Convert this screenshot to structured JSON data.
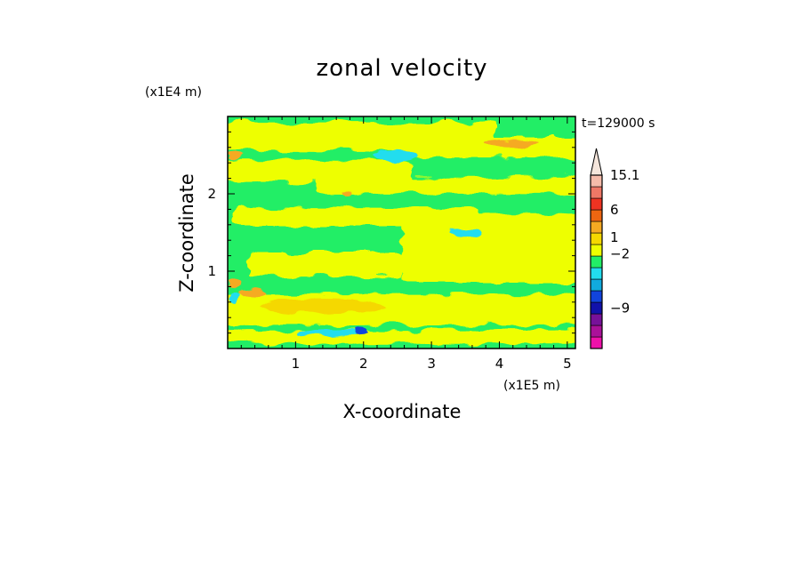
{
  "chart_data": {
    "type": "heatmap",
    "title": "zonal velocity",
    "xlabel": "X-coordinate",
    "ylabel": "Z-coordinate",
    "x_scale_label": "(x1E5 m)",
    "y_scale_label": "(x1E4 m)",
    "time_label": "t=129000 s",
    "xlim": [
      0,
      5.12
    ],
    "ylim": [
      0,
      3.0
    ],
    "x_ticks": [
      1,
      2,
      3,
      4,
      5
    ],
    "y_ticks": [
      1,
      2
    ],
    "colorbar": {
      "levels_bottom_to_top": [
        {
          "color": "#ee11aa"
        },
        {
          "color": "#aa1199"
        },
        {
          "color": "#771199"
        },
        {
          "color": "#1111aa"
        },
        {
          "color": "#1144dd"
        },
        {
          "color": "#11aadd"
        },
        {
          "color": "#22ddee"
        },
        {
          "color": "#22ee66"
        },
        {
          "color": "#eeff00"
        },
        {
          "color": "#f5d800"
        },
        {
          "color": "#f5aa22"
        },
        {
          "color": "#ee6611"
        },
        {
          "color": "#ee3322"
        },
        {
          "color": "#ee7766"
        },
        {
          "color": "#f5bbaa"
        }
      ],
      "extend_top_color": "#f5e6dc",
      "labels": [
        {
          "text": "15.1",
          "level": 15
        },
        {
          "text": "6",
          "level": 12
        },
        {
          "text": "1",
          "level": 9.6
        },
        {
          "text": "−2",
          "level": 8.2
        },
        {
          "text": "−9",
          "level": 3.5
        }
      ]
    },
    "background_color": "#22ee66",
    "bands": [
      {
        "color": "#eeff00",
        "z": 0.15,
        "half_width": 0.09,
        "x_start": 0.0,
        "x_end": 5.12
      },
      {
        "color": "#eeff00",
        "z": 0.5,
        "half_width": 0.2,
        "x_start": 0.0,
        "x_end": 5.12
      },
      {
        "color": "#eeff00",
        "z": 1.3,
        "half_width": 0.45,
        "x_start": 2.7,
        "x_end": 5.12
      },
      {
        "color": "#eeff00",
        "z": 1.08,
        "half_width": 0.15,
        "x_start": 0.4,
        "x_end": 2.5
      },
      {
        "color": "#eeff00",
        "z": 1.7,
        "half_width": 0.12,
        "x_start": 0.2,
        "x_end": 3.6
      },
      {
        "color": "#eeff00",
        "z": 2.1,
        "half_width": 0.11,
        "x_start": 1.4,
        "x_end": 5.12
      },
      {
        "color": "#eeff00",
        "z": 2.3,
        "half_width": 0.14,
        "x_start": 0.0,
        "x_end": 2.6
      },
      {
        "color": "#eeff00",
        "z": 2.6,
        "half_width": 0.13,
        "x_start": 2.5,
        "x_end": 5.12
      },
      {
        "color": "#eeff00",
        "z": 2.75,
        "half_width": 0.18,
        "x_start": 0.0,
        "x_end": 3.8
      }
    ],
    "blobs": [
      {
        "color": "#f5d800",
        "x": 1.4,
        "z": 0.55,
        "rx": 0.9,
        "rz": 0.1
      },
      {
        "color": "#f5aa22",
        "x": 0.35,
        "z": 0.72,
        "rx": 0.2,
        "rz": 0.07
      },
      {
        "color": "#f5aa22",
        "x": 0.1,
        "z": 0.85,
        "rx": 0.1,
        "rz": 0.08
      },
      {
        "color": "#f5aa22",
        "x": 4.2,
        "z": 2.65,
        "rx": 0.4,
        "rz": 0.05
      },
      {
        "color": "#f5aa22",
        "x": 0.1,
        "z": 2.5,
        "rx": 0.1,
        "rz": 0.05
      },
      {
        "color": "#f5aa22",
        "x": 1.75,
        "z": 2.0,
        "rx": 0.07,
        "rz": 0.04
      },
      {
        "color": "#22ddee",
        "x": 1.45,
        "z": 0.2,
        "rx": 0.45,
        "rz": 0.05
      },
      {
        "color": "#1144dd",
        "x": 1.95,
        "z": 0.23,
        "rx": 0.1,
        "rz": 0.04
      },
      {
        "color": "#22ddee",
        "x": 2.45,
        "z": 2.5,
        "rx": 0.32,
        "rz": 0.07
      },
      {
        "color": "#22ddee",
        "x": 3.5,
        "z": 1.5,
        "rx": 0.25,
        "rz": 0.06
      },
      {
        "color": "#22ddee",
        "x": 0.1,
        "z": 0.65,
        "rx": 0.06,
        "rz": 0.08
      }
    ]
  }
}
